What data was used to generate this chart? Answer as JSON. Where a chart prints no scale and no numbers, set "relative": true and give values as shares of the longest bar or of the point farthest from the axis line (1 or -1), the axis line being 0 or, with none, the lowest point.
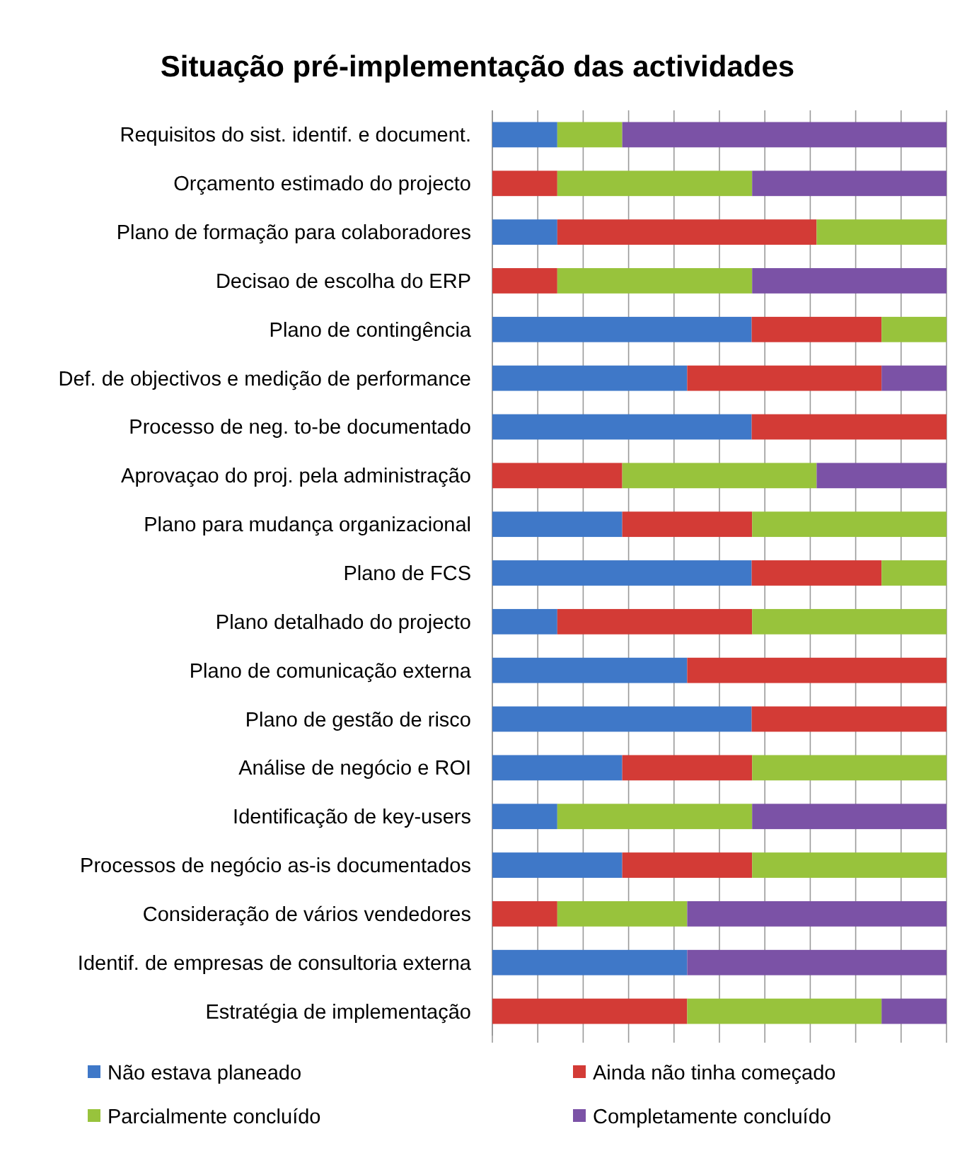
{
  "chart_data": {
    "type": "bar",
    "orientation": "horizontal",
    "stacked": true,
    "relative": true,
    "grid": "x",
    "legend": "bottom",
    "title": "Situação pré-implementação das actividades",
    "categories": [
      "Requisitos do sist. identif. e document.",
      "Orçamento estimado do projecto",
      "Plano de formação para colaboradores",
      "Decisao de escolha do ERP",
      "Plano de contingência",
      "Def. de objectivos e medição de performance",
      "Processo de neg. to-be documentado",
      "Aprovaçao do proj. pela administração",
      "Plano para mudança organizacional",
      "Plano de FCS",
      "Plano detalhado do projecto",
      "Plano de comunicação externa",
      "Plano de gestão de risco",
      "Análise de negócio e ROI",
      "Identificação de key-users",
      "Processos de negócio as-is documentados",
      "Consideração de vários vendedores",
      "Identif. de empresas de consultoria externa",
      "Estratégia de implementação"
    ],
    "series": [
      {
        "name": "Não estava planeado",
        "color": "#3f78c8",
        "values": [
          0.143,
          0,
          0.143,
          0,
          0.571,
          0.429,
          0.571,
          0,
          0.286,
          0.571,
          0.143,
          0.429,
          0.571,
          0.286,
          0.143,
          0.286,
          0,
          0.429,
          0
        ]
      },
      {
        "name": "Ainda não tinha começado",
        "color": "#d33b36",
        "values": [
          0,
          0.143,
          0.571,
          0.143,
          0.286,
          0.428,
          0.429,
          0.286,
          0.286,
          0.286,
          0.429,
          0.571,
          0.429,
          0.286,
          0,
          0.286,
          0.143,
          0,
          0.429
        ]
      },
      {
        "name": "Parcialmente concluído",
        "color": "#98c33c",
        "values": [
          0.143,
          0.429,
          0.286,
          0.429,
          0.143,
          0,
          0,
          0.428,
          0.428,
          0.143,
          0.428,
          0,
          0,
          0.428,
          0.429,
          0.428,
          0.286,
          0,
          0.428
        ]
      },
      {
        "name": "Completamente concluído",
        "color": "#7b52a6",
        "values": [
          0.714,
          0.428,
          0,
          0.428,
          0,
          0.143,
          0,
          0.286,
          0,
          0,
          0,
          0,
          0,
          0,
          0.428,
          0,
          0.571,
          0.571,
          0.143
        ]
      }
    ]
  }
}
